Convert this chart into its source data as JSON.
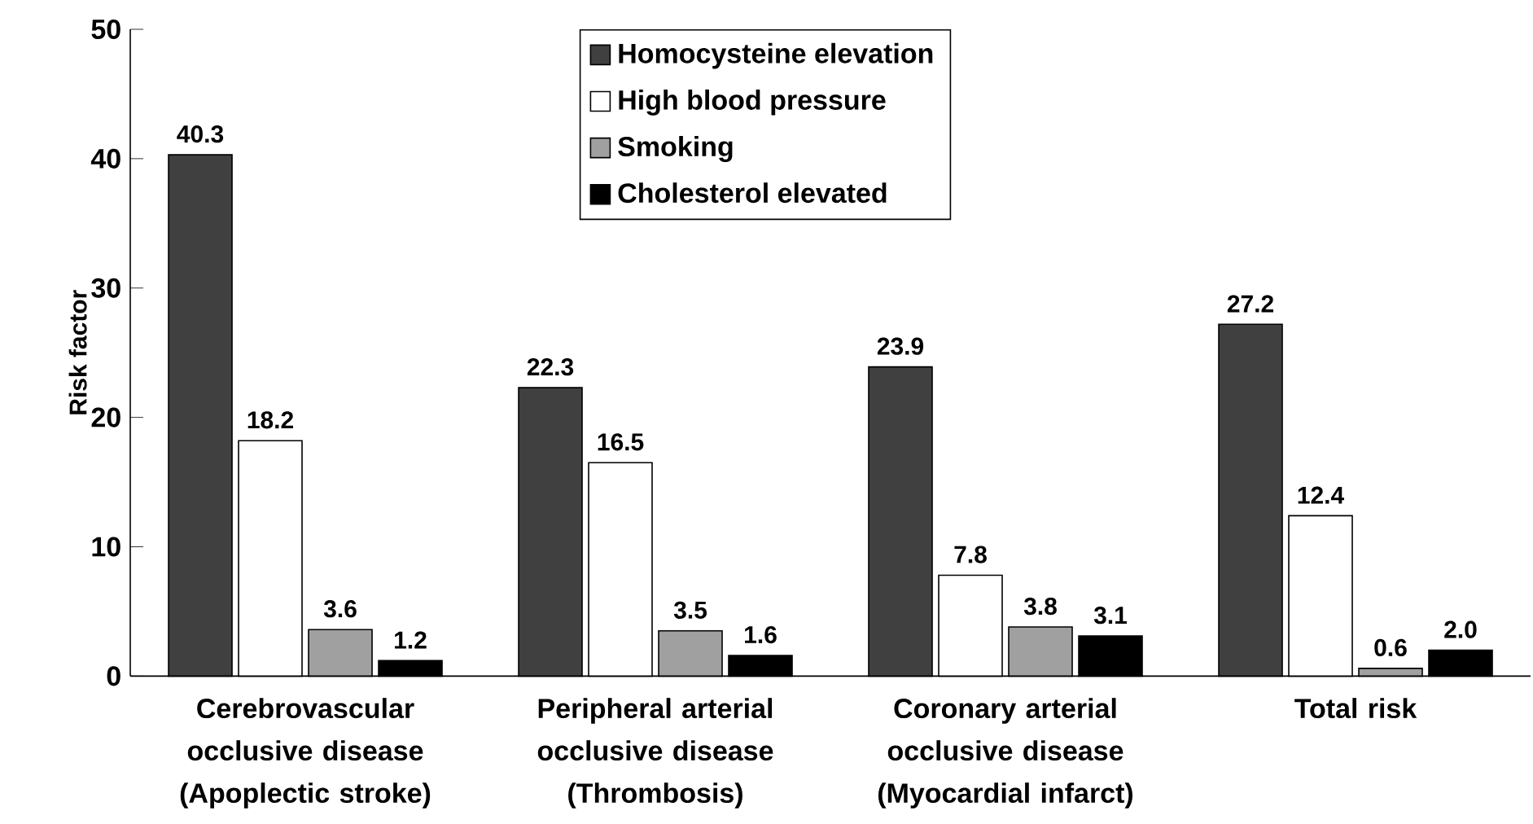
{
  "chart_data": {
    "type": "bar",
    "ylabel": "Risk factor",
    "categories": [
      "Cerebrovascular occlusive disease (Apoplectic stroke)",
      "Peripheral arterial occlusive disease (Thrombosis)",
      "Coronary arterial occlusive disease (Myocardial infarct)",
      "Total risk"
    ],
    "series": [
      {
        "name": "Homocysteine elevation",
        "color": "#404040",
        "values": [
          40.3,
          22.3,
          23.9,
          27.2
        ],
        "value_labels": [
          "40.3",
          "22.3",
          "23.9",
          "27.2"
        ]
      },
      {
        "name": "High blood pressure",
        "color": "#ffffff",
        "values": [
          18.2,
          16.5,
          7.8,
          12.4
        ],
        "value_labels": [
          "18.2",
          "16.5",
          "7.8",
          "12.4"
        ]
      },
      {
        "name": "Smoking",
        "color": "#a0a0a0",
        "values": [
          3.6,
          3.5,
          3.8,
          0.6
        ],
        "value_labels": [
          "3.6",
          "3.5",
          "3.8",
          "0.6"
        ]
      },
      {
        "name": "Cholesterol elevated",
        "color": "#000000",
        "values": [
          1.2,
          1.6,
          3.1,
          2.0
        ],
        "value_labels": [
          "1.2",
          "1.6",
          "3.1",
          "2.0"
        ]
      }
    ],
    "ylim": [
      0,
      50
    ],
    "yticks": [
      0,
      10,
      20,
      30,
      40,
      50
    ],
    "legend": "top",
    "grid": false
  }
}
